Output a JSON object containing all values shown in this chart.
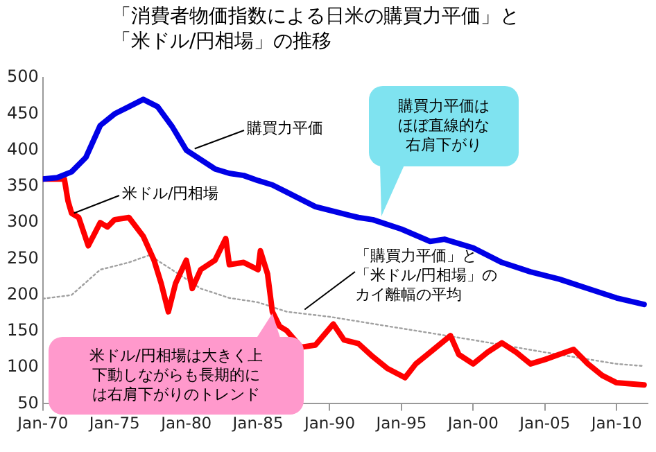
{
  "chart_data": {
    "type": "line",
    "title": "「消費者物価指数による日米の購買力平価」と「米ドル/円相場」の推移",
    "xlim": [
      "1970-01",
      "2012-03"
    ],
    "xticks": [
      {
        "value": "1970-01",
        "label": "Jan-70"
      },
      {
        "value": "1975-01",
        "label": "Jan-75"
      },
      {
        "value": "1980-01",
        "label": "Jan-80"
      },
      {
        "value": "1985-01",
        "label": "Jan-85"
      },
      {
        "value": "1990-01",
        "label": "Jan-90"
      },
      {
        "value": "1995-01",
        "label": "Jan-95"
      },
      {
        "value": "2000-01",
        "label": "Jan-00"
      },
      {
        "value": "2005-01",
        "label": "Jan-05"
      },
      {
        "value": "2010-01",
        "label": "Jan-10"
      }
    ],
    "ylim": [
      50,
      500
    ],
    "yticks": [
      50,
      100,
      150,
      200,
      250,
      300,
      350,
      400,
      450,
      500
    ],
    "grid": false,
    "legend": false,
    "marker": "none",
    "series": [
      {
        "color": "#0000e6",
        "line_style": "solid",
        "x": [
          "1970-01",
          "1971-01",
          "1972-01",
          "1973-01",
          "1974-01",
          "1975-01",
          "1976-01",
          "1977-01",
          "1978-01",
          "1979-01",
          "1980-01",
          "1981-01",
          "1982-01",
          "1983-01",
          "1984-01",
          "1985-01",
          "1986-01",
          "1987-01",
          "1988-01",
          "1989-01",
          "1990-01",
          "1992-01",
          "1993-01",
          "1995-01",
          "1997-01",
          "1998-01",
          "2000-01",
          "2002-01",
          "2004-01",
          "2006-01",
          "2008-01",
          "2010-01",
          "2011-12"
        ],
        "values": [
          360,
          362,
          370,
          390,
          434,
          450,
          460,
          470,
          460,
          433,
          400,
          387,
          374,
          368,
          365,
          358,
          352,
          342,
          332,
          322,
          317,
          307,
          304,
          291,
          274,
          277,
          265,
          245,
          232,
          222,
          209,
          196,
          187
        ]
      },
      {
        "color": "#ff0000",
        "line_style": "solid",
        "x": [
          "1970-01",
          "1971-07",
          "1971-10",
          "1972-01",
          "1972-07",
          "1973-03",
          "1974-01",
          "1974-07",
          "1975-01",
          "1976-01",
          "1977-01",
          "1977-10",
          "1978-04",
          "1978-10",
          "1979-04",
          "1980-01",
          "1980-06",
          "1981-01",
          "1982-01",
          "1982-10",
          "1983-01",
          "1984-01",
          "1985-01",
          "1985-03",
          "1985-09",
          "1986-01",
          "1986-07",
          "1987-01",
          "1988-01",
          "1989-01",
          "1990-04",
          "1991-01",
          "1992-01",
          "1993-01",
          "1994-01",
          "1995-04",
          "1996-01",
          "1997-01",
          "1998-06",
          "1999-01",
          "2000-01",
          "2001-01",
          "2002-01",
          "2003-01",
          "2004-01",
          "2005-01",
          "2006-01",
          "2007-01",
          "2008-01",
          "2009-01",
          "2010-01",
          "2011-12"
        ],
        "values": [
          360,
          360,
          330,
          313,
          307,
          268,
          300,
          294,
          304,
          307,
          281,
          248,
          216,
          177,
          216,
          248,
          209,
          235,
          248,
          278,
          242,
          245,
          235,
          261,
          229,
          177,
          157,
          151,
          128,
          131,
          160,
          138,
          133,
          115,
          99,
          86,
          105,
          121,
          144,
          118,
          105,
          121,
          134,
          121,
          105,
          111,
          118,
          125,
          105,
          89,
          79,
          76
        ]
      },
      {
        "color": "#a0a0a0",
        "line_style": "dotted",
        "x": [
          "1970-01",
          "1972-01",
          "1974-01",
          "1976-01",
          "1977-06",
          "1979-01",
          "1981-01",
          "1983-01",
          "1985-01",
          "1987-01",
          "1990-01",
          "1995-01",
          "2000-01",
          "2005-01",
          "2010-01",
          "2011-12"
        ],
        "values": [
          195,
          200,
          235,
          245,
          255,
          235,
          209,
          196,
          190,
          177,
          170,
          154,
          138,
          121,
          105,
          102
        ]
      }
    ],
    "annotations": [
      {
        "text": "購買力平価",
        "x": "1980-08",
        "y": 402
      },
      {
        "text": "米ドル/円相場",
        "x": "1972-03",
        "y": 313
      },
      {
        "text": "「購買力平価」と「米ドル/円相場」のカイ離幅の平均",
        "x": "1988-04",
        "y": 180
      },
      "購買力平価はほぼ直線的な右肩下がり",
      {
        "text": "米ドル/円相場は大きく上下動しながらも長期的には右肩下がりのトレンド",
        "x": "1986-01",
        "y": 180
      }
    ]
  }
}
